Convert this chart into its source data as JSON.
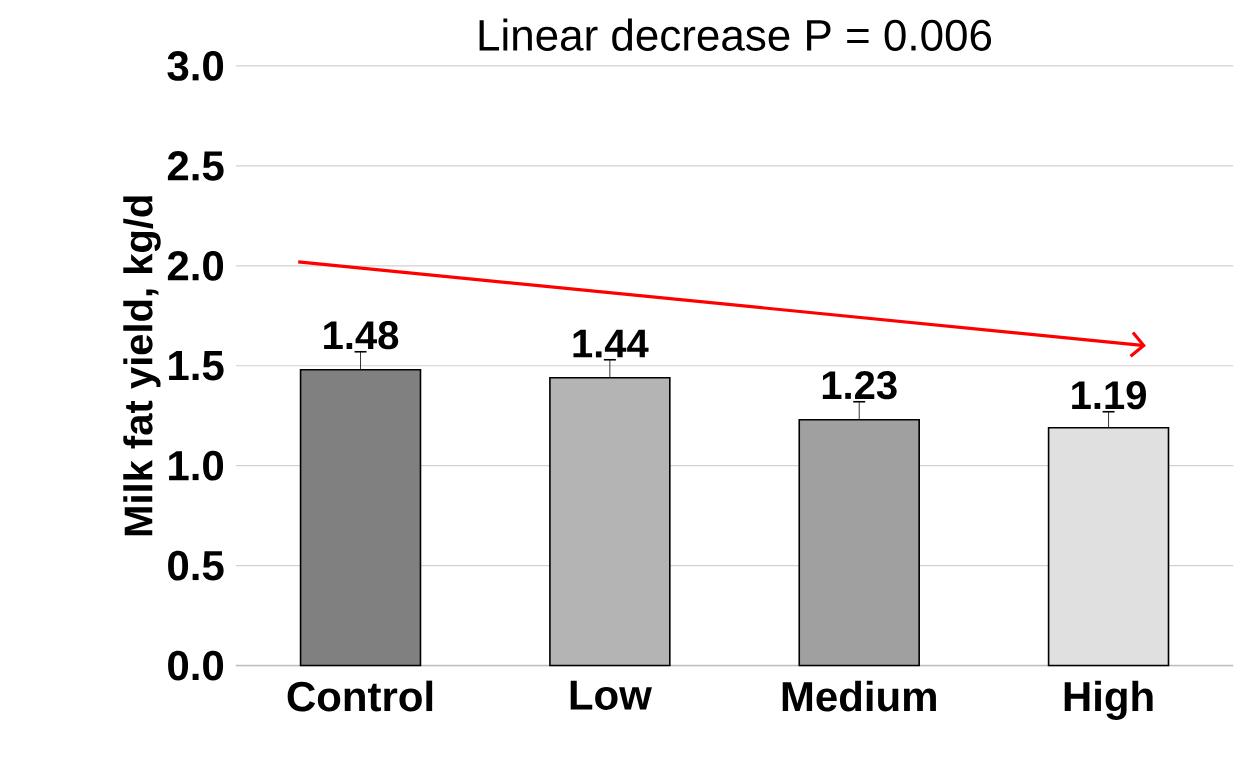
{
  "chart_data": {
    "type": "bar",
    "title": "Linear decrease P = 0.006",
    "ylabel": "Milk fat yield, kg/d",
    "categories": [
      "Control",
      "Low",
      "Medium",
      "High"
    ],
    "values": [
      1.48,
      1.44,
      1.23,
      1.19
    ],
    "errors": [
      0.09,
      0.09,
      0.09,
      0.08
    ],
    "colors": [
      "#808080",
      "#b4b4b4",
      "#a0a0a0",
      "#e0e0e0"
    ],
    "ylim": [
      0,
      3
    ],
    "yticks": [
      {
        "value": 0,
        "label": "0.0"
      },
      {
        "value": 0.5,
        "label": "0.5"
      },
      {
        "value": 1,
        "label": "1.0"
      },
      {
        "value": 1.5,
        "label": "1.5"
      },
      {
        "value": 2,
        "label": "2.0"
      },
      {
        "value": 2.5,
        "label": "2.5"
      },
      {
        "value": 3,
        "label": "3.0"
      }
    ],
    "grid": "y",
    "data_labels": true
  }
}
